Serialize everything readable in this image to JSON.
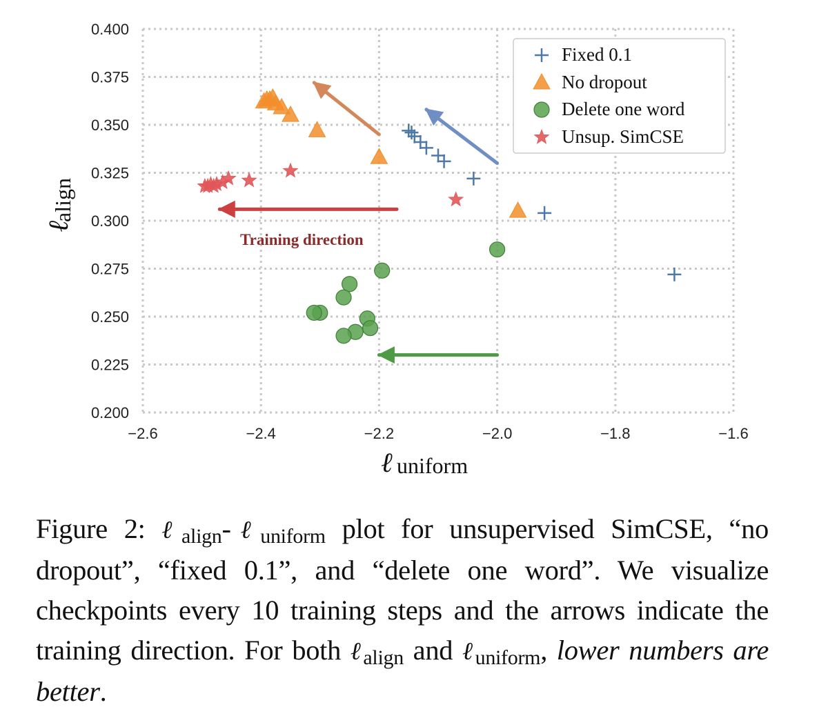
{
  "chart_data": {
    "type": "scatter",
    "title": "",
    "xlabel": "ℓuniform",
    "ylabel": "ℓalign",
    "x_axis_label": {
      "symbol": "ℓ",
      "subscript": "uniform"
    },
    "y_axis_label": {
      "symbol": "ℓ",
      "subscript": "align"
    },
    "xlim": [
      -2.6,
      -1.6
    ],
    "ylim": [
      0.2,
      0.4
    ],
    "grid": true,
    "legend_position": "top-right",
    "x_ticks": [
      -2.6,
      -2.4,
      -2.2,
      -2.0,
      -1.8,
      -1.6
    ],
    "x_tick_labels": [
      "−2.6",
      "−2.4",
      "−2.2",
      "−2.0",
      "−1.8",
      "−1.6"
    ],
    "y_ticks": [
      0.2,
      0.225,
      0.25,
      0.275,
      0.3,
      0.325,
      0.35,
      0.375,
      0.4
    ],
    "y_tick_labels": [
      "0.200",
      "0.225",
      "0.250",
      "0.275",
      "0.300",
      "0.325",
      "0.350",
      "0.375",
      "0.400"
    ],
    "series": [
      {
        "name": "Fixed 0.1",
        "key": "fixed",
        "marker": "plus",
        "color": "#4e79a7",
        "points": [
          [
            -1.7,
            0.272
          ],
          [
            -1.92,
            0.304
          ],
          [
            -2.04,
            0.322
          ],
          [
            -2.09,
            0.331
          ],
          [
            -2.1,
            0.334
          ],
          [
            -2.12,
            0.338
          ],
          [
            -2.13,
            0.341
          ],
          [
            -2.14,
            0.344
          ],
          [
            -2.145,
            0.346
          ],
          [
            -2.15,
            0.347
          ]
        ]
      },
      {
        "name": "No dropout",
        "key": "nodrop",
        "marker": "triangle",
        "color": "#f28e2b",
        "points": [
          [
            -1.965,
            0.305
          ],
          [
            -2.2,
            0.333
          ],
          [
            -2.305,
            0.347
          ],
          [
            -2.35,
            0.355
          ],
          [
            -2.365,
            0.359
          ],
          [
            -2.375,
            0.361
          ],
          [
            -2.38,
            0.364
          ],
          [
            -2.385,
            0.363
          ],
          [
            -2.39,
            0.363
          ],
          [
            -2.395,
            0.362
          ]
        ]
      },
      {
        "name": "Delete one word",
        "key": "delete",
        "marker": "circle",
        "color": "#59a14f",
        "points": [
          [
            -2.0,
            0.285
          ],
          [
            -2.195,
            0.274
          ],
          [
            -2.25,
            0.267
          ],
          [
            -2.26,
            0.26
          ],
          [
            -2.3,
            0.252
          ],
          [
            -2.31,
            0.252
          ],
          [
            -2.22,
            0.249
          ],
          [
            -2.215,
            0.244
          ],
          [
            -2.24,
            0.242
          ],
          [
            -2.26,
            0.24
          ]
        ]
      },
      {
        "name": "Unsup. SimCSE",
        "key": "simcse",
        "marker": "star",
        "color": "#e15759",
        "points": [
          [
            -2.07,
            0.311
          ],
          [
            -2.35,
            0.326
          ],
          [
            -2.42,
            0.321
          ],
          [
            -2.455,
            0.322
          ],
          [
            -2.465,
            0.32
          ],
          [
            -2.475,
            0.319
          ],
          [
            -2.48,
            0.318
          ],
          [
            -2.485,
            0.319
          ],
          [
            -2.49,
            0.318
          ],
          [
            -2.495,
            0.318
          ]
        ]
      }
    ],
    "arrows": [
      {
        "series": "No dropout",
        "color": "#d4885a",
        "from": [
          -2.2,
          0.345
        ],
        "to": [
          -2.31,
          0.372
        ]
      },
      {
        "series": "Fixed 0.1",
        "color": "#6f8fc4",
        "from": [
          -2.0,
          0.33
        ],
        "to": [
          -2.12,
          0.358
        ]
      },
      {
        "series": "Unsup. SimCSE",
        "color": "#cc4040",
        "from": [
          -2.17,
          0.306
        ],
        "to": [
          -2.47,
          0.306
        ]
      },
      {
        "series": "Delete one word",
        "color": "#4f9a44",
        "from": [
          -2.0,
          0.23
        ],
        "to": [
          -2.2,
          0.23
        ]
      }
    ],
    "annotations": [
      {
        "text": "Training direction",
        "color": "#8b2a2a"
      }
    ]
  },
  "caption": {
    "figure_label": "Figure 2:",
    "ell": "ℓ",
    "sub_align": "align",
    "sub_uniform": "uniform",
    "part1": "-",
    "part2": " plot for unsupervised SimCSE, “no dropout”, “fixed 0.1”, and “delete one word”.  We visualize checkpoints every 10 training steps and the arrows indicate the training direction.  For both ",
    "part3": "and ",
    "part4": ", ",
    "emphasis": "lower numbers are better",
    "end": "."
  }
}
